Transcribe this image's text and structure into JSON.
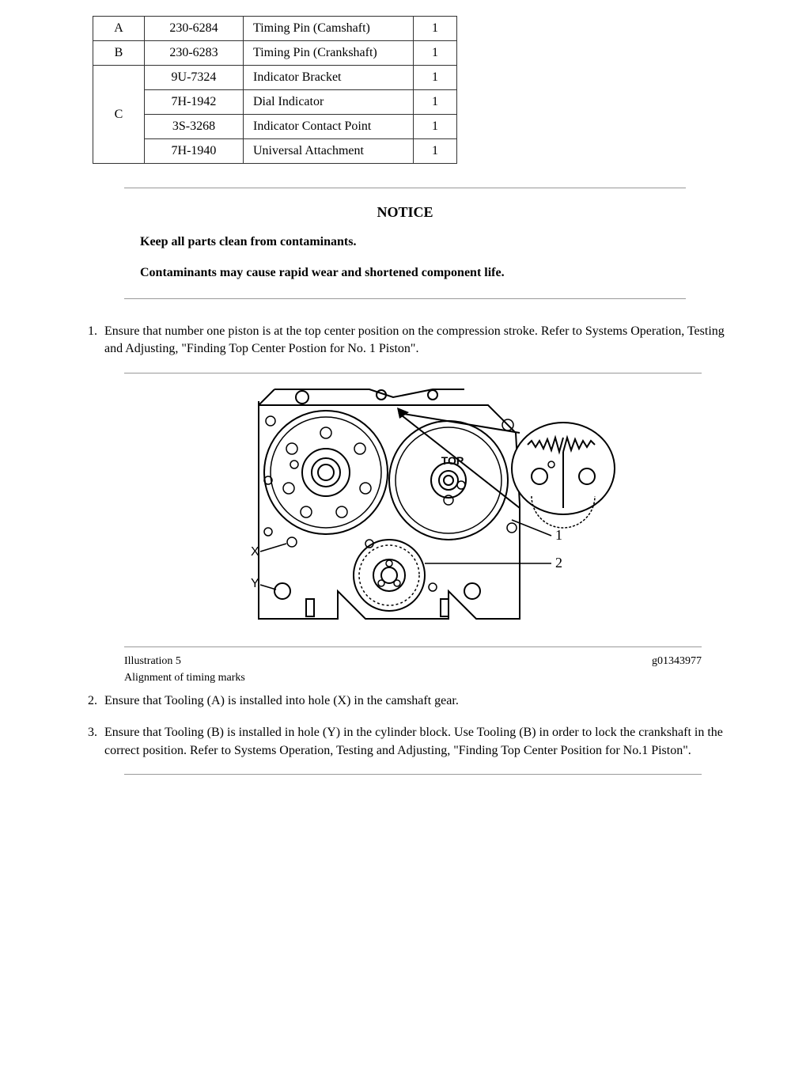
{
  "parts_table": {
    "rows": [
      {
        "group": "A",
        "part": "230-6284",
        "desc": "Timing Pin (Camshaft)",
        "qty": "1",
        "rowspan": 1
      },
      {
        "group": "B",
        "part": "230-6283",
        "desc": "Timing Pin (Crankshaft)",
        "qty": "1",
        "rowspan": 1
      },
      {
        "group": "C",
        "part": "9U-7324",
        "desc": "Indicator Bracket",
        "qty": "1",
        "rowspan": 4
      },
      {
        "group": "",
        "part": "7H-1942",
        "desc": "Dial Indicator",
        "qty": "1",
        "rowspan": 0
      },
      {
        "group": "",
        "part": "3S-3268",
        "desc": "Indicator Contact Point",
        "qty": "1",
        "rowspan": 0
      },
      {
        "group": "",
        "part": "7H-1940",
        "desc": "Universal Attachment",
        "qty": "1",
        "rowspan": 0
      }
    ]
  },
  "notice": {
    "title": "NOTICE",
    "line1": "Keep all parts clean from contaminants.",
    "line2": "Contaminants may cause rapid wear and shortened component life."
  },
  "steps": {
    "s1": "Ensure that number one piston is at the top center position on the compression stroke. Refer to Systems Operation, Testing and Adjusting, \"Finding Top Center Postion for No. 1 Piston\".",
    "s2": "Ensure that Tooling (A) is installed into hole (X) in the camshaft gear.",
    "s3": "Ensure that Tooling (B) is installed in hole (Y) in the cylinder block. Use Tooling (B) in order to lock the crankshaft in the correct position. Refer to Systems Operation, Testing and Adjusting, \"Finding Top Center Position for No.1 Piston\"."
  },
  "figure": {
    "label": "Illustration 5",
    "code": "g01343977",
    "subcaption": "Alignment of timing marks",
    "diagram_labels": {
      "top": "TOP",
      "x": "X",
      "y": "Y",
      "one": "1",
      "two": "2"
    }
  }
}
